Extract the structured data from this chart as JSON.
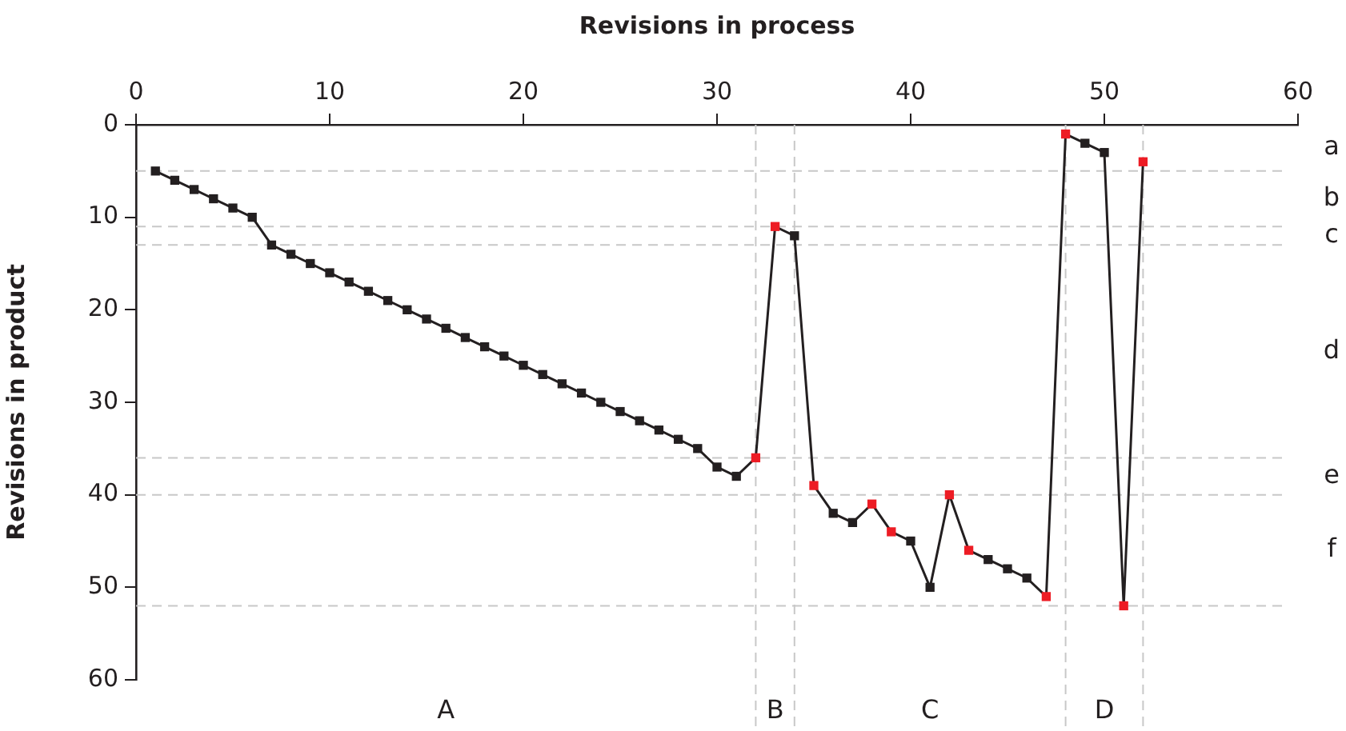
{
  "chart_data": {
    "type": "line",
    "xlabel": "Revisions in process",
    "ylabel": "Revisions in product",
    "x": [
      1,
      2,
      3,
      4,
      5,
      6,
      7,
      8,
      9,
      10,
      11,
      12,
      13,
      14,
      15,
      16,
      17,
      18,
      19,
      20,
      21,
      22,
      23,
      24,
      25,
      26,
      27,
      28,
      29,
      30,
      31,
      32,
      33,
      34,
      35,
      36,
      37,
      38,
      39,
      40,
      41,
      42,
      43,
      44,
      45,
      46,
      47,
      48,
      49,
      50,
      51,
      52
    ],
    "values": [
      5,
      6,
      7,
      8,
      9,
      10,
      13,
      14,
      15,
      16,
      17,
      18,
      19,
      20,
      21,
      22,
      23,
      24,
      25,
      26,
      27,
      28,
      29,
      30,
      31,
      32,
      33,
      34,
      35,
      37,
      38,
      36,
      11,
      12,
      39,
      42,
      43,
      41,
      44,
      45,
      50,
      40,
      46,
      47,
      48,
      49,
      51,
      1,
      2,
      3,
      52,
      4
    ],
    "color": "#231f20",
    "colors": [
      "#231f20",
      "#231f20",
      "#231f20",
      "#231f20",
      "#231f20",
      "#231f20",
      "#231f20",
      "#231f20",
      "#231f20",
      "#231f20",
      "#231f20",
      "#231f20",
      "#231f20",
      "#231f20",
      "#231f20",
      "#231f20",
      "#231f20",
      "#231f20",
      "#231f20",
      "#231f20",
      "#231f20",
      "#231f20",
      "#231f20",
      "#231f20",
      "#231f20",
      "#231f20",
      "#231f20",
      "#231f20",
      "#231f20",
      "#231f20",
      "#231f20",
      "#ed1c24",
      "#ed1c24",
      "#231f20",
      "#ed1c24",
      "#231f20",
      "#231f20",
      "#ed1c24",
      "#ed1c24",
      "#231f20",
      "#231f20",
      "#ed1c24",
      "#ed1c24",
      "#231f20",
      "#231f20",
      "#231f20",
      "#ed1c24",
      "#ed1c24",
      "#231f20",
      "#231f20",
      "#ed1c24",
      "#ed1c24"
    ],
    "marker": "square",
    "line_style": "solid",
    "xlim": [
      0,
      60
    ],
    "xticks": [
      0,
      10,
      20,
      30,
      40,
      50,
      60
    ],
    "ylim": [
      60,
      0
    ],
    "yticks": [
      0,
      10,
      20,
      30,
      40,
      50,
      60
    ],
    "grid": false,
    "legend": false,
    "ref_lines": [
      {
        "axis": "y",
        "value": 5,
        "color": "#c8c8c8",
        "line_style": "dashed"
      },
      {
        "axis": "y",
        "value": 11,
        "color": "#c8c8c8",
        "line_style": "dashed"
      },
      {
        "axis": "y",
        "value": 13,
        "color": "#c8c8c8",
        "line_style": "dashed"
      },
      {
        "axis": "y",
        "value": 36,
        "color": "#c8c8c8",
        "line_style": "dashed"
      },
      {
        "axis": "y",
        "value": 40,
        "color": "#c8c8c8",
        "line_style": "dashed"
      },
      {
        "axis": "y",
        "value": 52,
        "color": "#c8c8c8",
        "line_style": "dashed"
      },
      {
        "axis": "x",
        "value": 32,
        "color": "#c8c8c8",
        "line_style": "dashed"
      },
      {
        "axis": "x",
        "value": 34,
        "color": "#c8c8c8",
        "line_style": "dashed"
      },
      {
        "axis": "x",
        "value": 48,
        "color": "#c8c8c8",
        "line_style": "dashed"
      },
      {
        "axis": "x",
        "value": 52,
        "color": "#c8c8c8",
        "line_style": "dashed"
      }
    ],
    "annotations": [
      "a",
      "b",
      "c",
      "d",
      "e",
      "f",
      "A",
      "B",
      "C",
      "D"
    ]
  }
}
